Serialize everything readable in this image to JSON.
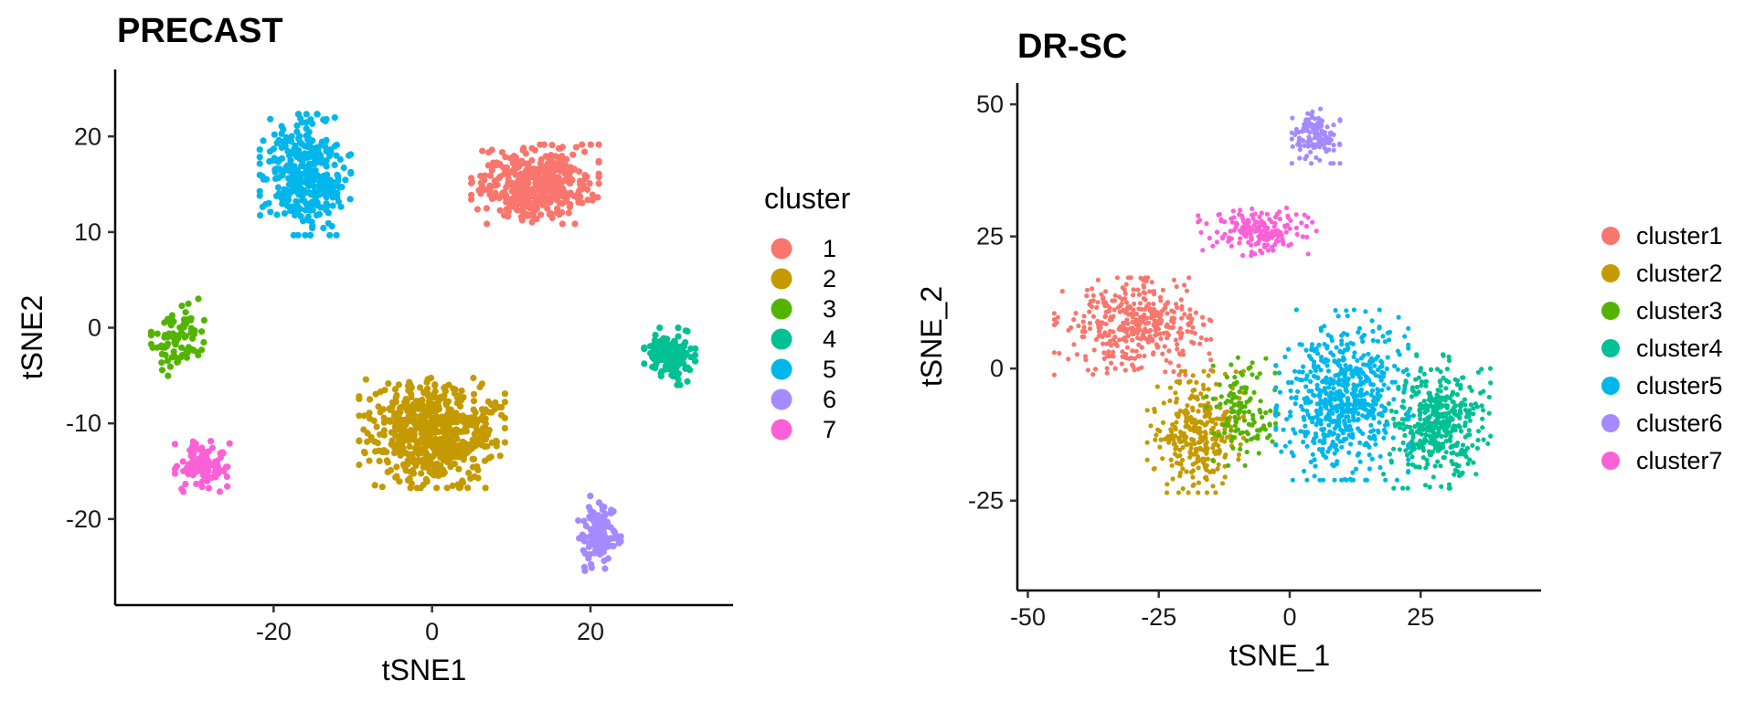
{
  "chart_data": [
    {
      "type": "scatter",
      "title": "PRECAST",
      "xlabel": "tSNE1",
      "ylabel": "tSNE2",
      "xlim": [
        -40,
        38
      ],
      "ylim": [
        -29,
        27
      ],
      "xticks": [
        -20,
        0,
        20
      ],
      "yticks": [
        20,
        10,
        0,
        -10,
        -20
      ],
      "grid": false,
      "legend": {
        "title": "cluster",
        "placement": "right"
      },
      "series": [
        {
          "name": "1",
          "color": "#F8766D",
          "center": [
            13,
            15
          ],
          "spread": [
            7,
            3.6
          ],
          "n": 420
        },
        {
          "name": "2",
          "color": "#C49A00",
          "center": [
            0,
            -11
          ],
          "spread": [
            8,
            5
          ],
          "n": 620
        },
        {
          "name": "3",
          "color": "#53B400",
          "center": [
            -32,
            -1
          ],
          "spread": [
            3,
            3.5
          ],
          "n": 90
        },
        {
          "name": "4",
          "color": "#00C094",
          "center": [
            30,
            -3
          ],
          "spread": [
            2.8,
            2.6
          ],
          "n": 140
        },
        {
          "name": "5",
          "color": "#00B6EB",
          "center": [
            -16,
            16
          ],
          "spread": [
            5,
            5.5
          ],
          "n": 360
        },
        {
          "name": "6",
          "color": "#A58AFF",
          "center": [
            21,
            -21.5
          ],
          "spread": [
            2.7,
            3.4
          ],
          "n": 130
        },
        {
          "name": "7",
          "color": "#FB61D7",
          "center": [
            -29,
            -14.5
          ],
          "spread": [
            3,
            2.3
          ],
          "n": 110
        }
      ]
    },
    {
      "type": "scatter",
      "title": "DR-SC",
      "xlabel": "tSNE_1",
      "ylabel": "tSNE_2",
      "xlim": [
        -52,
        48
      ],
      "ylim": [
        -42,
        54
      ],
      "xticks": [
        -50,
        -25,
        0,
        25
      ],
      "yticks": [
        50,
        25,
        0,
        -25
      ],
      "grid": false,
      "legend": {
        "title": "",
        "placement": "right"
      },
      "series": [
        {
          "name": "cluster1",
          "color": "#F8766D",
          "center": [
            -30,
            8
          ],
          "spread": [
            13,
            8
          ],
          "n": 380
        },
        {
          "name": "cluster2",
          "color": "#C49A00",
          "center": [
            -18,
            -12
          ],
          "spread": [
            8,
            10
          ],
          "n": 320
        },
        {
          "name": "cluster3",
          "color": "#53B400",
          "center": [
            -9,
            -8
          ],
          "spread": [
            6,
            9
          ],
          "n": 120
        },
        {
          "name": "cluster4",
          "color": "#00C094",
          "center": [
            28,
            -10
          ],
          "spread": [
            9,
            11
          ],
          "n": 420
        },
        {
          "name": "cluster5",
          "color": "#00B6EB",
          "center": [
            10,
            -5
          ],
          "spread": [
            11,
            14
          ],
          "n": 620
        },
        {
          "name": "cluster6",
          "color": "#A58AFF",
          "center": [
            5,
            44
          ],
          "spread": [
            4,
            4.5
          ],
          "n": 120
        },
        {
          "name": "cluster7",
          "color": "#FB61D7",
          "center": [
            -6,
            26
          ],
          "spread": [
            10,
            4
          ],
          "n": 180
        }
      ]
    }
  ]
}
